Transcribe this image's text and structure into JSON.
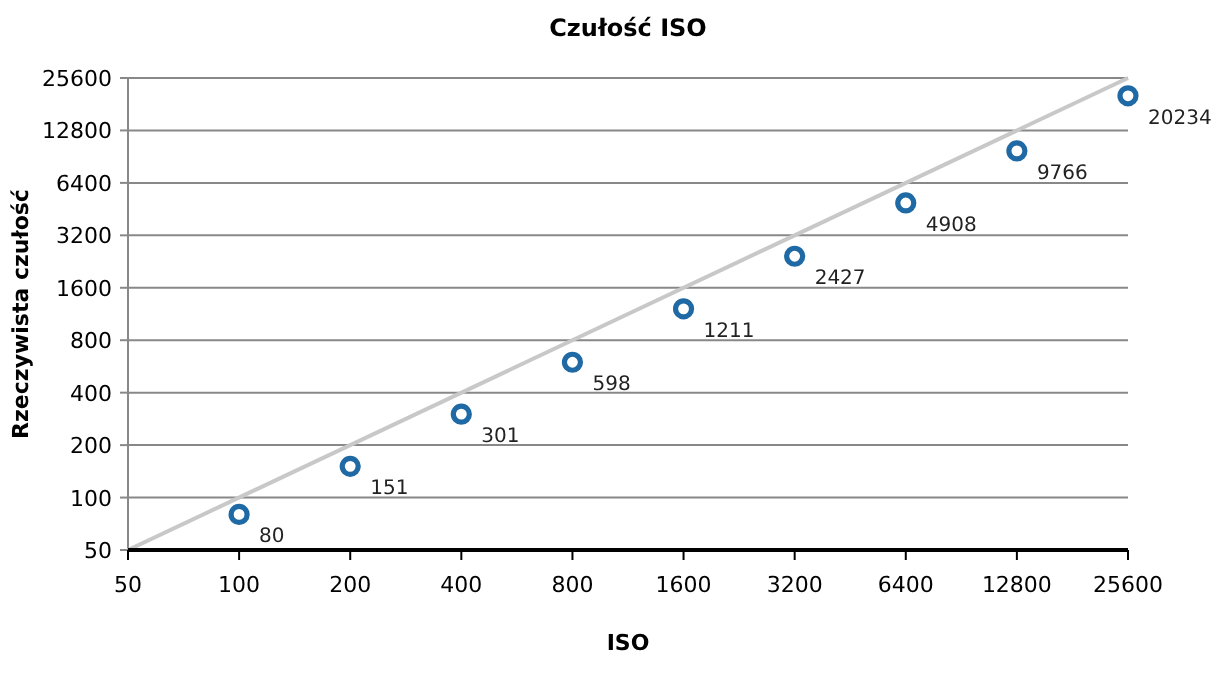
{
  "chart_data": {
    "type": "scatter",
    "title": "Czułość ISO",
    "xlabel": "ISO",
    "ylabel": "Rzeczywista czułość",
    "log": "xy",
    "grid": "y",
    "xlim": [
      50,
      25600
    ],
    "ylim": [
      50,
      25600
    ],
    "xticks": [
      50,
      100,
      200,
      400,
      800,
      1600,
      3200,
      6400,
      12800,
      25600
    ],
    "yticks": [
      50,
      100,
      200,
      400,
      800,
      1600,
      3200,
      6400,
      12800,
      25600
    ],
    "series": [
      {
        "type": "line",
        "marker": "none",
        "color": "#c8c8c8",
        "x": [
          50,
          25600
        ],
        "values": [
          50,
          25600
        ]
      },
      {
        "marker": "circle",
        "color": "#1f6aa5",
        "x": [
          100,
          200,
          400,
          800,
          1600,
          3200,
          6400,
          12800,
          25600
        ],
        "values": [
          80,
          151,
          301,
          598,
          1211,
          2427,
          4908,
          9766,
          20234
        ],
        "value_labels": [
          "80",
          "151",
          "301",
          "598",
          "1211",
          "2427",
          "4908",
          "9766",
          "20234"
        ]
      }
    ]
  }
}
